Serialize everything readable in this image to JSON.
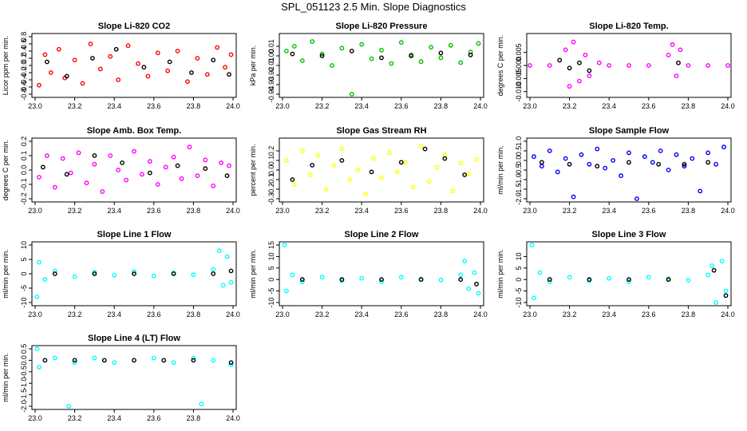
{
  "page": {
    "title": "SPL_051123  2.5 Min. Slope Diagnostics"
  },
  "colors": {
    "background": "#ffffff",
    "axis": "#000000",
    "flagged": "#000000"
  },
  "chart_data": [
    {
      "type": "scatter",
      "title": "Slope Li-820 CO2",
      "ylabel": "Licor ppm per min.",
      "xlabel": "",
      "xlim": [
        23.0,
        24.0
      ],
      "ylim": [
        -0.8,
        0.8
      ],
      "xticks": [
        23.0,
        23.2,
        23.4,
        23.6,
        23.8,
        24.0
      ],
      "xtick_labels": [
        "23.0",
        "23.2",
        "23.4",
        "23.6",
        "23.8",
        "24.0"
      ],
      "yticks": [
        -0.8,
        -0.6,
        -0.4,
        -0.2,
        0.0,
        0.2,
        0.4,
        0.6,
        0.8
      ],
      "ytick_labels": [
        "-0.8",
        "-0.6",
        "-0.4",
        "-0.2",
        "0.0",
        "0.2",
        "0.4",
        "0.6",
        "0.8"
      ],
      "color": "#ff0000",
      "series": [
        {
          "name": "samples",
          "x": [
            23.02,
            23.05,
            23.08,
            23.12,
            23.15,
            23.2,
            23.24,
            23.28,
            23.33,
            23.38,
            23.42,
            23.47,
            23.52,
            23.57,
            23.62,
            23.67,
            23.72,
            23.77,
            23.82,
            23.87,
            23.92,
            23.96,
            23.99
          ],
          "y": [
            -0.55,
            0.3,
            -0.2,
            0.45,
            -0.35,
            0.15,
            -0.5,
            0.6,
            -0.1,
            0.25,
            -0.4,
            0.55,
            0.05,
            -0.3,
            0.35,
            -0.15,
            0.4,
            -0.45,
            0.2,
            -0.25,
            0.5,
            -0.05,
            0.3
          ]
        },
        {
          "name": "flagged",
          "x": [
            23.06,
            23.16,
            23.29,
            23.41,
            23.55,
            23.68,
            23.79,
            23.9,
            23.98
          ],
          "y": [
            0.1,
            -0.3,
            0.2,
            0.45,
            -0.05,
            0.1,
            -0.2,
            0.15,
            -0.25
          ]
        }
      ]
    },
    {
      "type": "scatter",
      "title": "Slope Li-820 Pressure",
      "ylabel": "kPa per min.",
      "xlabel": "",
      "xlim": [
        23.0,
        24.0
      ],
      "ylim": [
        -0.04,
        0.02
      ],
      "xticks": [
        23.0,
        23.2,
        23.4,
        23.6,
        23.8,
        24.0
      ],
      "xtick_labels": [
        "23.0",
        "23.2",
        "23.4",
        "23.6",
        "23.8",
        "24.0"
      ],
      "yticks": [
        -0.04,
        -0.03,
        -0.02,
        -0.01,
        0.0,
        0.01
      ],
      "ytick_labels": [
        "-0.04",
        "-0.03",
        "-0.02",
        "-0.01",
        "0.00",
        "0.01"
      ],
      "color": "#00c000",
      "series": [
        {
          "name": "samples",
          "x": [
            23.02,
            23.06,
            23.1,
            23.15,
            23.2,
            23.25,
            23.3,
            23.35,
            23.4,
            23.45,
            23.5,
            23.55,
            23.6,
            23.65,
            23.7,
            23.75,
            23.8,
            23.85,
            23.9,
            23.95,
            23.99
          ],
          "y": [
            0.005,
            0.01,
            -0.005,
            0.015,
            0.002,
            -0.01,
            0.008,
            -0.04,
            0.012,
            -0.003,
            0.006,
            -0.008,
            0.014,
            0.001,
            -0.006,
            0.009,
            -0.002,
            0.011,
            -0.007,
            0.004,
            0.013
          ]
        },
        {
          "name": "flagged",
          "x": [
            23.05,
            23.2,
            23.35,
            23.5,
            23.65,
            23.8,
            23.95
          ],
          "y": [
            0.002,
            0.0,
            0.005,
            -0.002,
            0.0,
            0.003,
            0.001
          ]
        }
      ]
    },
    {
      "type": "scatter",
      "title": "Slope Li-820 Temp.",
      "ylabel": "degrees C per min.",
      "xlabel": "",
      "xlim": [
        23.0,
        24.0
      ],
      "ylim": [
        -0.011,
        0.011
      ],
      "xticks": [
        23.0,
        23.2,
        23.4,
        23.6,
        23.8,
        24.0
      ],
      "xtick_labels": [
        "23.0",
        "23.2",
        "23.4",
        "23.6",
        "23.8",
        "24.0"
      ],
      "yticks": [
        -0.01,
        -0.005,
        0.0,
        0.005
      ],
      "ytick_labels": [
        "-0.010",
        "-0.005",
        "0.000",
        "0.005"
      ],
      "color": "#ff00ff",
      "series": [
        {
          "name": "samples",
          "x": [
            23.0,
            23.1,
            23.18,
            23.2,
            23.22,
            23.25,
            23.28,
            23.3,
            23.35,
            23.4,
            23.5,
            23.6,
            23.7,
            23.72,
            23.74,
            23.76,
            23.8,
            23.9,
            24.0
          ],
          "y": [
            0.0,
            0.0,
            0.006,
            -0.008,
            0.009,
            -0.006,
            0.004,
            -0.004,
            0.001,
            0.0,
            0.0,
            0.0,
            0.004,
            0.008,
            -0.004,
            0.006,
            0.0,
            0.0,
            0.0
          ]
        },
        {
          "name": "flagged",
          "x": [
            23.15,
            23.2,
            23.25,
            23.3,
            23.75
          ],
          "y": [
            0.002,
            -0.001,
            0.001,
            -0.002,
            0.001
          ]
        }
      ]
    },
    {
      "type": "scatter",
      "title": "Slope Amb. Box Temp.",
      "ylabel": "degrees C per min.",
      "xlabel": "",
      "xlim": [
        23.0,
        24.0
      ],
      "ylim": [
        -0.2,
        0.2
      ],
      "xticks": [
        23.0,
        23.2,
        23.4,
        23.6,
        23.8,
        24.0
      ],
      "xtick_labels": [
        "23.0",
        "23.2",
        "23.4",
        "23.6",
        "23.8",
        "24.0"
      ],
      "yticks": [
        -0.2,
        -0.1,
        0.0,
        0.1,
        0.2
      ],
      "ytick_labels": [
        "-0.2",
        "-0.1",
        "0.0",
        "0.1",
        "0.2"
      ],
      "color": "#ff00ff",
      "series": [
        {
          "name": "samples",
          "x": [
            23.02,
            23.06,
            23.1,
            23.14,
            23.18,
            23.22,
            23.26,
            23.3,
            23.34,
            23.38,
            23.42,
            23.46,
            23.5,
            23.54,
            23.58,
            23.62,
            23.66,
            23.7,
            23.74,
            23.78,
            23.82,
            23.86,
            23.9,
            23.94,
            23.98
          ],
          "y": [
            -0.05,
            0.1,
            -0.12,
            0.08,
            -0.02,
            0.12,
            -0.09,
            0.04,
            -0.15,
            0.1,
            0.0,
            -0.07,
            0.13,
            -0.03,
            0.06,
            -0.1,
            0.02,
            0.09,
            -0.06,
            0.16,
            -0.04,
            0.07,
            -0.11,
            0.05,
            0.03
          ]
        },
        {
          "name": "flagged",
          "x": [
            23.04,
            23.16,
            23.3,
            23.44,
            23.58,
            23.72,
            23.86,
            23.97
          ],
          "y": [
            0.02,
            -0.03,
            0.1,
            0.05,
            -0.02,
            0.03,
            0.01,
            -0.04
          ]
        }
      ]
    },
    {
      "type": "scatter",
      "title": "Slope Gas Stream RH",
      "ylabel": "percent per min.",
      "xlabel": "",
      "xlim": [
        23.0,
        24.0
      ],
      "ylim": [
        -0.3,
        0.3
      ],
      "xticks": [
        23.0,
        23.2,
        23.4,
        23.6,
        23.8,
        24.0
      ],
      "xtick_labels": [
        "23.0",
        "23.2",
        "23.4",
        "23.6",
        "23.8",
        "24.0"
      ],
      "yticks": [
        -0.3,
        -0.2,
        -0.1,
        0.0,
        0.1,
        0.2
      ],
      "ytick_labels": [
        "-0.3",
        "-0.2",
        "-0.1",
        "0.0",
        "0.1",
        "0.2"
      ],
      "color": "#ffff00",
      "series": [
        {
          "name": "samples",
          "x": [
            23.02,
            23.06,
            23.1,
            23.14,
            23.18,
            23.22,
            23.26,
            23.3,
            23.34,
            23.38,
            23.42,
            23.46,
            23.5,
            23.54,
            23.58,
            23.62,
            23.66,
            23.7,
            23.74,
            23.78,
            23.82,
            23.86,
            23.9,
            23.94,
            23.98
          ],
          "y": [
            0.1,
            -0.15,
            0.2,
            -0.05,
            0.15,
            -0.2,
            0.05,
            0.22,
            -0.1,
            0.0,
            -0.25,
            0.12,
            -0.08,
            0.18,
            -0.02,
            0.08,
            -0.18,
            0.25,
            -0.12,
            0.03,
            0.16,
            -0.22,
            0.07,
            -0.04,
            0.11
          ]
        },
        {
          "name": "flagged",
          "x": [
            23.05,
            23.15,
            23.3,
            23.45,
            23.6,
            23.72,
            23.82,
            23.92
          ],
          "y": [
            -0.1,
            0.05,
            0.1,
            -0.02,
            0.08,
            0.22,
            0.12,
            -0.05
          ]
        }
      ]
    },
    {
      "type": "scatter",
      "title": "Slope Sample Flow",
      "ylabel": "ml/min per min.",
      "xlabel": "",
      "xlim": [
        23.0,
        24.0
      ],
      "ylim": [
        -2.0,
        1.0
      ],
      "xticks": [
        23.0,
        23.2,
        23.4,
        23.6,
        23.8,
        24.0
      ],
      "xtick_labels": [
        "23.0",
        "23.2",
        "23.4",
        "23.6",
        "23.8",
        "24.0"
      ],
      "yticks": [
        -2.0,
        -1.5,
        -1.0,
        -0.5,
        0.0,
        0.5,
        1.0
      ],
      "ytick_labels": [
        "-2.0",
        "-1.5",
        "-1.0",
        "-0.5",
        "0.0",
        "0.5",
        "1.0"
      ],
      "color": "#0000ff",
      "series": [
        {
          "name": "samples",
          "x": [
            23.02,
            23.06,
            23.1,
            23.14,
            23.18,
            23.22,
            23.26,
            23.3,
            23.34,
            23.38,
            23.42,
            23.46,
            23.5,
            23.54,
            23.58,
            23.62,
            23.66,
            23.7,
            23.74,
            23.78,
            23.82,
            23.86,
            23.9,
            23.94,
            23.98
          ],
          "y": [
            0.2,
            -0.3,
            0.5,
            -0.6,
            0.1,
            -1.9,
            0.3,
            -0.2,
            0.6,
            -0.4,
            0.0,
            -0.8,
            0.4,
            -2.0,
            0.2,
            -0.1,
            0.5,
            -0.5,
            0.3,
            -0.3,
            0.1,
            -1.6,
            0.4,
            -0.2,
            0.7
          ]
        },
        {
          "name": "flagged",
          "x": [
            23.06,
            23.2,
            23.34,
            23.5,
            23.65,
            23.78,
            23.9
          ],
          "y": [
            -0.1,
            -0.2,
            -0.3,
            -0.1,
            -0.2,
            -0.2,
            -0.1
          ]
        }
      ]
    },
    {
      "type": "scatter",
      "title": "Slope Line 1 Flow",
      "ylabel": "ml/min per min.",
      "xlabel": "",
      "xlim": [
        23.0,
        24.0
      ],
      "ylim": [
        -10,
        10
      ],
      "xticks": [
        23.0,
        23.2,
        23.4,
        23.6,
        23.8,
        24.0
      ],
      "xtick_labels": [
        "23.0",
        "23.2",
        "23.4",
        "23.6",
        "23.8",
        "24.0"
      ],
      "yticks": [
        -10,
        -5,
        0,
        5,
        10
      ],
      "ytick_labels": [
        "-10",
        "-5",
        "0",
        "5",
        "10"
      ],
      "color": "#00ffff",
      "series": [
        {
          "name": "samples",
          "x": [
            23.01,
            23.02,
            23.05,
            23.1,
            23.2,
            23.3,
            23.4,
            23.5,
            23.6,
            23.7,
            23.8,
            23.9,
            23.93,
            23.95,
            23.97,
            23.99
          ],
          "y": [
            -8,
            4,
            -2,
            1,
            -1,
            0.5,
            -0.5,
            0.8,
            -0.8,
            0.3,
            -0.3,
            1.5,
            8,
            -4,
            6,
            -3
          ]
        },
        {
          "name": "flagged",
          "x": [
            23.1,
            23.3,
            23.5,
            23.7,
            23.9,
            23.99
          ],
          "y": [
            0,
            0,
            0,
            0,
            0,
            1
          ]
        }
      ]
    },
    {
      "type": "scatter",
      "title": "Slope Line 2 Flow",
      "ylabel": "ml/min per min.",
      "xlabel": "",
      "xlim": [
        23.0,
        24.0
      ],
      "ylim": [
        -10,
        15
      ],
      "xticks": [
        23.0,
        23.2,
        23.4,
        23.6,
        23.8,
        24.0
      ],
      "xtick_labels": [
        "23.0",
        "23.2",
        "23.4",
        "23.6",
        "23.8",
        "24.0"
      ],
      "yticks": [
        -10,
        -5,
        0,
        5,
        10,
        15
      ],
      "ytick_labels": [
        "-10",
        "-5",
        "0",
        "5",
        "10",
        "15"
      ],
      "color": "#00ffff",
      "series": [
        {
          "name": "samples",
          "x": [
            23.01,
            23.02,
            23.05,
            23.1,
            23.2,
            23.3,
            23.4,
            23.5,
            23.6,
            23.7,
            23.8,
            23.9,
            23.92,
            23.94,
            23.97,
            23.99
          ],
          "y": [
            15,
            -5,
            2,
            -1,
            1,
            -0.5,
            0.5,
            -1,
            1,
            0.2,
            -0.2,
            2,
            8,
            -4,
            3,
            -6
          ]
        },
        {
          "name": "flagged",
          "x": [
            23.1,
            23.3,
            23.5,
            23.7,
            23.9,
            23.98
          ],
          "y": [
            0,
            0,
            0,
            0,
            0,
            -2
          ]
        }
      ]
    },
    {
      "type": "scatter",
      "title": "Slope Line 3 Flow",
      "ylabel": "ml/min per min.",
      "xlabel": "",
      "xlim": [
        23.0,
        24.0
      ],
      "ylim": [
        -10,
        15
      ],
      "xticks": [
        23.0,
        23.2,
        23.4,
        23.6,
        23.8,
        24.0
      ],
      "xtick_labels": [
        "23.0",
        "23.2",
        "23.4",
        "23.6",
        "23.8",
        "24.0"
      ],
      "yticks": [
        -10,
        -5,
        0,
        5,
        10
      ],
      "ytick_labels": [
        "-10",
        "-5",
        "0",
        "5",
        "10"
      ],
      "color": "#00ffff",
      "series": [
        {
          "name": "samples",
          "x": [
            23.01,
            23.02,
            23.05,
            23.1,
            23.2,
            23.3,
            23.4,
            23.5,
            23.6,
            23.7,
            23.8,
            23.9,
            23.92,
            23.94,
            23.97,
            23.99
          ],
          "y": [
            15,
            -8,
            3,
            -1,
            1,
            -0.5,
            0.5,
            -1,
            1,
            0.3,
            -0.3,
            2,
            6,
            -10,
            8,
            -5
          ]
        },
        {
          "name": "flagged",
          "x": [
            23.1,
            23.3,
            23.5,
            23.7,
            23.93,
            23.99
          ],
          "y": [
            0,
            0,
            0,
            0,
            4,
            -7
          ]
        }
      ]
    },
    {
      "type": "scatter",
      "title": "Slope Line 4 (LT) Flow",
      "ylabel": "ml/min per min.",
      "xlabel": "",
      "xlim": [
        23.0,
        24.0
      ],
      "ylim": [
        -2.0,
        0.5
      ],
      "xticks": [
        23.0,
        23.2,
        23.4,
        23.6,
        23.8,
        24.0
      ],
      "xtick_labels": [
        "23.0",
        "23.2",
        "23.4",
        "23.6",
        "23.8",
        "24.0"
      ],
      "yticks": [
        -2.0,
        -1.5,
        -1.0,
        -0.5,
        0.0,
        0.5
      ],
      "ytick_labels": [
        "-2.0",
        "-1.5",
        "-1.0",
        "-0.5",
        "0.0",
        "0.5"
      ],
      "color": "#00ffff",
      "series": [
        {
          "name": "samples",
          "x": [
            23.01,
            23.02,
            23.1,
            23.17,
            23.2,
            23.3,
            23.4,
            23.5,
            23.6,
            23.7,
            23.8,
            23.84,
            23.9,
            23.99
          ],
          "y": [
            0.5,
            -0.3,
            0.1,
            -2.0,
            -0.1,
            0.1,
            -0.1,
            -2.1,
            0.1,
            -0.1,
            0.1,
            -1.9,
            0.0,
            -0.2
          ]
        },
        {
          "name": "flagged",
          "x": [
            23.05,
            23.2,
            23.35,
            23.5,
            23.65,
            23.8,
            23.99
          ],
          "y": [
            0.0,
            0.0,
            0.0,
            0.0,
            0.0,
            0.0,
            -0.1
          ]
        }
      ]
    }
  ]
}
